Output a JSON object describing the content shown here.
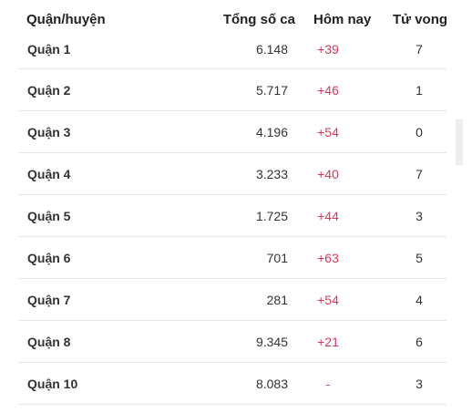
{
  "table": {
    "headers": {
      "district": "Quận/huyện",
      "total": "Tổng số ca",
      "today": "Hôm nay",
      "deaths": "Tử vong"
    },
    "rows": [
      {
        "district": "Quận 1",
        "total": "6.148",
        "today": "+39",
        "deaths": "7"
      },
      {
        "district": "Quận 2",
        "total": "5.717",
        "today": "+46",
        "deaths": "1"
      },
      {
        "district": "Quận 3",
        "total": "4.196",
        "today": "+54",
        "deaths": "0"
      },
      {
        "district": "Quận 4",
        "total": "3.233",
        "today": "+40",
        "deaths": "7"
      },
      {
        "district": "Quận 5",
        "total": "1.725",
        "today": "+44",
        "deaths": "3"
      },
      {
        "district": "Quận 6",
        "total": "701",
        "today": "+63",
        "deaths": "5"
      },
      {
        "district": "Quận 7",
        "total": "281",
        "today": "+54",
        "deaths": "4"
      },
      {
        "district": "Quận 8",
        "total": "9.345",
        "today": "+21",
        "deaths": "6"
      },
      {
        "district": "Quận 10",
        "total": "8.083",
        "today": "-",
        "deaths": "3"
      }
    ]
  },
  "colors": {
    "today_accent": "#d23a5b",
    "divider": "#e6e6e6"
  }
}
